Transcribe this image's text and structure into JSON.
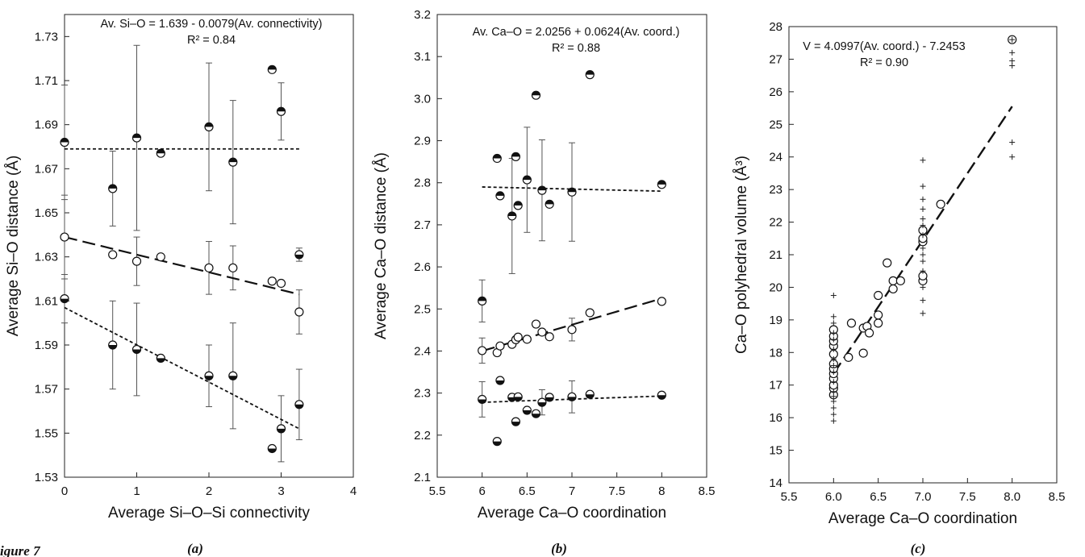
{
  "figure_caption": "igure 7",
  "chart_data": [
    {
      "panel_label": "(a)",
      "type": "scatter",
      "xlabel": "Average Si–O–Si connectivity",
      "ylabel": "Average Si–O distance (Å)",
      "xlim": [
        0,
        4
      ],
      "ylim": [
        1.53,
        1.74
      ],
      "xticks": [
        0,
        1,
        2,
        3,
        4
      ],
      "xtick_labels": [
        "0",
        "1",
        "2",
        "3",
        "4"
      ],
      "yticks": [
        1.53,
        1.55,
        1.57,
        1.59,
        1.61,
        1.63,
        1.65,
        1.67,
        1.69,
        1.71,
        1.73
      ],
      "ytick_labels": [
        "1.53",
        "1.55",
        "1.57",
        "1.59",
        "1.61",
        "1.63",
        "1.65",
        "1.67",
        "1.69",
        "1.71",
        "1.73"
      ],
      "grid": false,
      "annotations": [
        "Av. Si–O  = 1.639 - 0.0079(Av. connectivity)",
        "R² = 0.84"
      ],
      "series": [
        {
          "marker": "half-top",
          "points": [
            {
              "x": 0,
              "y": 1.682,
              "err": 0.026
            },
            {
              "x": 0.667,
              "y": 1.661,
              "err": 0.017
            },
            {
              "x": 1,
              "y": 1.684,
              "err": 0.042
            },
            {
              "x": 1.333,
              "y": 1.677
            },
            {
              "x": 2,
              "y": 1.689,
              "err": 0.029
            },
            {
              "x": 2.333,
              "y": 1.673,
              "err": 0.028
            },
            {
              "x": 2.875,
              "y": 1.715
            },
            {
              "x": 3,
              "y": 1.696,
              "err": 0.013
            }
          ],
          "fit": {
            "type": "short-dash",
            "x": [
              0,
              3.25
            ],
            "y": [
              1.679,
              1.679
            ]
          }
        },
        {
          "marker": "open",
          "points": [
            {
              "x": 0,
              "y": 1.639,
              "err": 0.019
            },
            {
              "x": 0.667,
              "y": 1.631
            },
            {
              "x": 1,
              "y": 1.628,
              "err": 0.011
            },
            {
              "x": 1.333,
              "y": 1.63
            },
            {
              "x": 2,
              "y": 1.625,
              "err": 0.012
            },
            {
              "x": 2.333,
              "y": 1.625,
              "err": 0.01
            },
            {
              "x": 2.875,
              "y": 1.619
            },
            {
              "x": 3,
              "y": 1.618
            },
            {
              "x": 3.25,
              "y": 1.605,
              "err": 0.01
            }
          ],
          "fit": {
            "type": "long-dash",
            "x": [
              0,
              3.25
            ],
            "y": [
              1.639,
              1.613
            ]
          }
        },
        {
          "marker": "half-bottom",
          "points": [
            {
              "x": 0,
              "y": 1.611,
              "err": 0.011
            },
            {
              "x": 0.667,
              "y": 1.59,
              "err": 0.02
            },
            {
              "x": 1,
              "y": 1.588,
              "err": 0.021
            },
            {
              "x": 1.333,
              "y": 1.584
            },
            {
              "x": 2,
              "y": 1.576,
              "err": 0.014
            },
            {
              "x": 2.333,
              "y": 1.576,
              "err": 0.024
            },
            {
              "x": 2.875,
              "y": 1.543
            },
            {
              "x": 3,
              "y": 1.552,
              "err": 0.015
            },
            {
              "x": 3.25,
              "y": 1.563,
              "err": 0.016
            },
            {
              "x": 3.25,
              "y": 1.631,
              "err": 0.003
            }
          ],
          "fit": {
            "type": "short-dash",
            "x": [
              0,
              3.25
            ],
            "y": [
              1.607,
              1.552
            ]
          }
        }
      ]
    },
    {
      "panel_label": "(b)",
      "type": "scatter",
      "xlabel": "Average Ca–O coordination",
      "ylabel": "Average Ca–O distance (Å)",
      "xlim": [
        5.5,
        8.5
      ],
      "ylim": [
        2.1,
        3.2
      ],
      "xticks": [
        5.5,
        6,
        6.5,
        7,
        7.5,
        8,
        8.5
      ],
      "xtick_labels": [
        "5.5",
        "6",
        "6.5",
        "7",
        "7.5",
        "8",
        "8.5"
      ],
      "yticks": [
        2.1,
        2.2,
        2.3,
        2.4,
        2.5,
        2.6,
        2.7,
        2.8,
        2.9,
        3.0,
        3.1,
        3.2
      ],
      "ytick_labels": [
        "2.1",
        "2.2",
        "2.3",
        "2.4",
        "2.5",
        "2.6",
        "2.7",
        "2.8",
        "2.9",
        "3.0",
        "3.1",
        "3.2"
      ],
      "grid": false,
      "annotations": [
        "Av. Ca–O = 2.0256 + 0.0624(Av. coord.)",
        "R² = 0.88"
      ],
      "series": [
        {
          "marker": "half-top",
          "points": [
            {
              "x": 6.167,
              "y": 2.858
            },
            {
              "x": 6.2,
              "y": 2.769
            },
            {
              "x": 6.333,
              "y": 2.721,
              "err": 0.137
            },
            {
              "x": 6.375,
              "y": 2.862
            },
            {
              "x": 6.4,
              "y": 2.746
            },
            {
              "x": 6.5,
              "y": 2.807,
              "err": 0.125
            },
            {
              "x": 6.6,
              "y": 3.008
            },
            {
              "x": 6.667,
              "y": 2.782,
              "err": 0.12
            },
            {
              "x": 6.75,
              "y": 2.749
            },
            {
              "x": 7,
              "y": 2.778,
              "err": 0.117
            },
            {
              "x": 7.2,
              "y": 3.057
            },
            {
              "x": 8,
              "y": 2.796
            },
            {
              "x": 6,
              "y": 2.519,
              "err": 0.05
            }
          ],
          "fit": {
            "type": "short-dash",
            "x": [
              6,
              8
            ],
            "y": [
              2.79,
              2.78
            ]
          }
        },
        {
          "marker": "open",
          "points": [
            {
              "x": 6,
              "y": 2.401,
              "err": 0.03
            },
            {
              "x": 6.167,
              "y": 2.396
            },
            {
              "x": 6.2,
              "y": 2.412
            },
            {
              "x": 6.333,
              "y": 2.416
            },
            {
              "x": 6.375,
              "y": 2.427
            },
            {
              "x": 6.4,
              "y": 2.433
            },
            {
              "x": 6.5,
              "y": 2.428
            },
            {
              "x": 6.6,
              "y": 2.464
            },
            {
              "x": 6.667,
              "y": 2.445
            },
            {
              "x": 6.75,
              "y": 2.434
            },
            {
              "x": 7,
              "y": 2.451,
              "err": 0.027
            },
            {
              "x": 7.2,
              "y": 2.491
            },
            {
              "x": 8,
              "y": 2.518
            }
          ],
          "fit": {
            "type": "long-dash",
            "x": [
              6,
              8
            ],
            "y": [
              2.4,
              2.525
            ]
          }
        },
        {
          "marker": "half-bottom",
          "points": [
            {
              "x": 6,
              "y": 2.285,
              "err": 0.042
            },
            {
              "x": 6.167,
              "y": 2.185
            },
            {
              "x": 6.2,
              "y": 2.33
            },
            {
              "x": 6.333,
              "y": 2.29
            },
            {
              "x": 6.375,
              "y": 2.232
            },
            {
              "x": 6.4,
              "y": 2.291
            },
            {
              "x": 6.5,
              "y": 2.259
            },
            {
              "x": 6.6,
              "y": 2.251
            },
            {
              "x": 6.667,
              "y": 2.278,
              "err": 0.03
            },
            {
              "x": 6.75,
              "y": 2.29
            },
            {
              "x": 7,
              "y": 2.291,
              "err": 0.038
            },
            {
              "x": 7.2,
              "y": 2.297
            },
            {
              "x": 8,
              "y": 2.295
            }
          ],
          "fit": {
            "type": "short-dash",
            "x": [
              6,
              8
            ],
            "y": [
              2.278,
              2.293
            ]
          }
        }
      ]
    },
    {
      "panel_label": "(c)",
      "type": "scatter",
      "xlabel": "Average Ca–O coordination",
      "ylabel": "Ca–O polyhedral volume (Å³)",
      "xlim": [
        5.5,
        8.5
      ],
      "ylim": [
        14,
        28
      ],
      "xticks": [
        5.5,
        6,
        6.5,
        7,
        7.5,
        8,
        8.5
      ],
      "xtick_labels": [
        "5.5",
        "6.0",
        "6.5",
        "7.0",
        "7.5",
        "8.0",
        "8.5"
      ],
      "yticks": [
        14,
        15,
        16,
        17,
        18,
        19,
        20,
        21,
        22,
        23,
        24,
        25,
        26,
        27,
        28
      ],
      "ytick_labels": [
        "14",
        "15",
        "16",
        "17",
        "18",
        "19",
        "20",
        "21",
        "22",
        "23",
        "24",
        "25",
        "26",
        "27",
        "28"
      ],
      "grid": false,
      "annotations": [
        "V = 4.0997(Av. coord.) - 7.2453",
        "R² = 0.90"
      ],
      "series": [
        {
          "marker": "open",
          "points": [
            {
              "x": 6,
              "y": 16.7
            },
            {
              "x": 6,
              "y": 16.9
            },
            {
              "x": 6,
              "y": 17.0
            },
            {
              "x": 6,
              "y": 17.2
            },
            {
              "x": 6,
              "y": 17.35
            },
            {
              "x": 6,
              "y": 17.5
            },
            {
              "x": 6,
              "y": 17.65
            },
            {
              "x": 6,
              "y": 17.95
            },
            {
              "x": 6,
              "y": 18.2
            },
            {
              "x": 6,
              "y": 18.35
            },
            {
              "x": 6,
              "y": 18.5
            },
            {
              "x": 6,
              "y": 18.7
            },
            {
              "x": 6.167,
              "y": 17.85
            },
            {
              "x": 6.2,
              "y": 18.9
            },
            {
              "x": 6.333,
              "y": 17.98
            },
            {
              "x": 6.333,
              "y": 18.75
            },
            {
              "x": 6.375,
              "y": 18.8
            },
            {
              "x": 6.4,
              "y": 18.6
            },
            {
              "x": 6.5,
              "y": 18.9
            },
            {
              "x": 6.5,
              "y": 19.15
            },
            {
              "x": 6.5,
              "y": 19.75
            },
            {
              "x": 6.6,
              "y": 20.75
            },
            {
              "x": 6.667,
              "y": 20.2
            },
            {
              "x": 6.667,
              "y": 19.95
            },
            {
              "x": 6.75,
              "y": 20.2
            },
            {
              "x": 7,
              "y": 20.2
            },
            {
              "x": 7,
              "y": 20.35
            },
            {
              "x": 7,
              "y": 21.4
            },
            {
              "x": 7,
              "y": 21.5
            },
            {
              "x": 7,
              "y": 21.75
            },
            {
              "x": 7.2,
              "y": 22.55
            },
            {
              "x": 8,
              "y": 27.6
            }
          ]
        },
        {
          "marker": "plus",
          "points": [
            {
              "x": 6,
              "y": 15.9
            },
            {
              "x": 6,
              "y": 16.1
            },
            {
              "x": 6,
              "y": 16.3
            },
            {
              "x": 6,
              "y": 16.5
            },
            {
              "x": 6,
              "y": 16.65
            },
            {
              "x": 6,
              "y": 16.8
            },
            {
              "x": 6,
              "y": 17.1
            },
            {
              "x": 6,
              "y": 17.4
            },
            {
              "x": 6,
              "y": 17.6
            },
            {
              "x": 6,
              "y": 17.8
            },
            {
              "x": 6,
              "y": 18.1
            },
            {
              "x": 6,
              "y": 18.4
            },
            {
              "x": 6,
              "y": 18.6
            },
            {
              "x": 6,
              "y": 18.9
            },
            {
              "x": 6,
              "y": 19.1
            },
            {
              "x": 6,
              "y": 19.75
            },
            {
              "x": 7,
              "y": 19.2
            },
            {
              "x": 7,
              "y": 19.6
            },
            {
              "x": 7,
              "y": 20.0
            },
            {
              "x": 7,
              "y": 20.5
            },
            {
              "x": 7,
              "y": 20.8
            },
            {
              "x": 7,
              "y": 21.0
            },
            {
              "x": 7,
              "y": 21.2
            },
            {
              "x": 7,
              "y": 21.6
            },
            {
              "x": 7,
              "y": 21.9
            },
            {
              "x": 7,
              "y": 22.1
            },
            {
              "x": 7,
              "y": 22.4
            },
            {
              "x": 7,
              "y": 22.7
            },
            {
              "x": 7,
              "y": 23.1
            },
            {
              "x": 7,
              "y": 23.9
            },
            {
              "x": 8,
              "y": 24.0
            },
            {
              "x": 8,
              "y": 24.45
            },
            {
              "x": 8,
              "y": 26.8
            },
            {
              "x": 8,
              "y": 26.95
            },
            {
              "x": 8,
              "y": 27.2
            },
            {
              "x": 8,
              "y": 27.6
            }
          ]
        }
      ],
      "fit": {
        "type": "long-dash",
        "x": [
          6,
          8
        ],
        "y": [
          17.35,
          25.55
        ]
      }
    }
  ]
}
